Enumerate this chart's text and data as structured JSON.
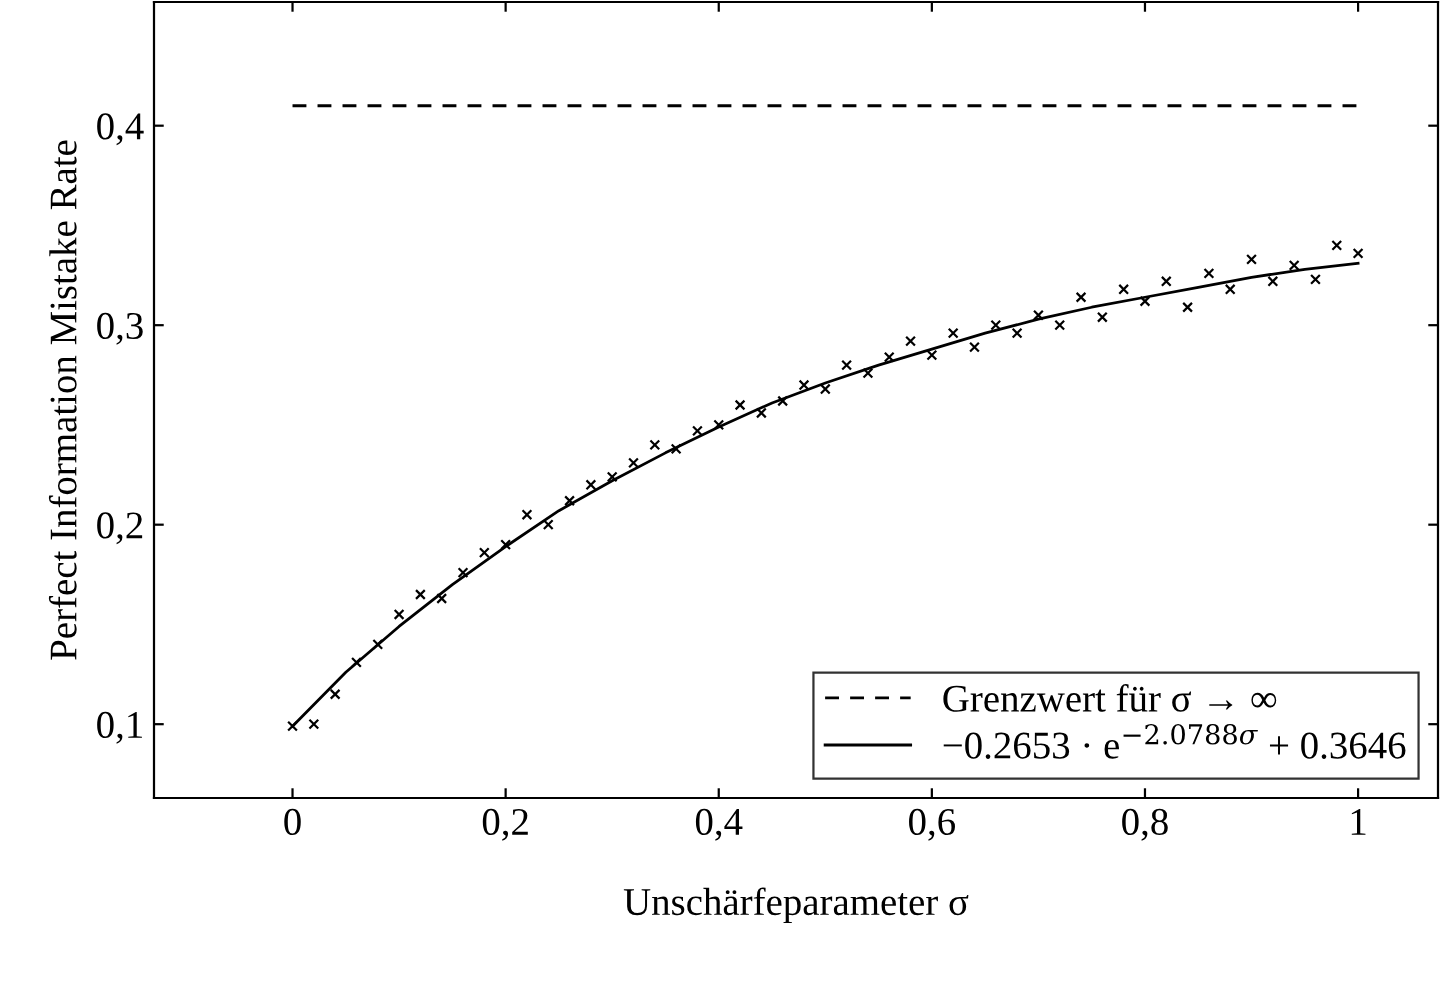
{
  "chart_data": {
    "type": "scatter",
    "xlabel": "Unschärfeparameter σ",
    "ylabel": "Perfect Information Mistake Rate",
    "xlim": [
      -0.13,
      1.075
    ],
    "ylim": [
      0.063,
      0.462
    ],
    "xticks": [
      0,
      {
        "value": 0.2,
        "label": "0,2"
      },
      {
        "value": 0.4,
        "label": "0,4"
      },
      {
        "value": 0.6,
        "label": "0,6"
      },
      {
        "value": 0.8,
        "label": "0,8"
      },
      1
    ],
    "yticks": [
      {
        "value": 0.1,
        "label": "0,1"
      },
      {
        "value": 0.2,
        "label": "0,2"
      },
      {
        "value": 0.3,
        "label": "0,3"
      },
      {
        "value": 0.4,
        "label": "0,4"
      }
    ],
    "grid": false,
    "legend": "bottom right",
    "series": [
      {
        "marker": "cross",
        "color": "#000000",
        "x": [
          0,
          0.02,
          0.04,
          0.06,
          0.08,
          0.1,
          0.12,
          0.14,
          0.16,
          0.18,
          0.2,
          0.22,
          0.24,
          0.26,
          0.28,
          0.3,
          0.32,
          0.34,
          0.36,
          0.38,
          0.4,
          0.42,
          0.44,
          0.46,
          0.48,
          0.5,
          0.52,
          0.54,
          0.56,
          0.58,
          0.6,
          0.62,
          0.64,
          0.66,
          0.68,
          0.7,
          0.72,
          0.74,
          0.76,
          0.78,
          0.8,
          0.82,
          0.84,
          0.86,
          0.88,
          0.9,
          0.92,
          0.94,
          0.96,
          0.98,
          1.0
        ],
        "values": [
          0.099,
          0.1,
          0.115,
          0.131,
          0.14,
          0.155,
          0.165,
          0.163,
          0.176,
          0.186,
          0.19,
          0.205,
          0.2,
          0.212,
          0.22,
          0.224,
          0.231,
          0.24,
          0.238,
          0.247,
          0.25,
          0.26,
          0.256,
          0.262,
          0.27,
          0.268,
          0.28,
          0.276,
          0.284,
          0.292,
          0.285,
          0.296,
          0.289,
          0.3,
          0.296,
          0.305,
          0.3,
          0.314,
          0.304,
          0.318,
          0.312,
          0.322,
          0.309,
          0.326,
          0.318,
          0.333,
          0.322,
          0.33,
          0.323,
          0.34,
          0.336
        ]
      },
      {
        "type": "line",
        "name": "Grenzwert für σ → ∞",
        "color": "#000000",
        "line_style": "dashed",
        "x": [
          0,
          1
        ],
        "values": [
          0.41,
          0.41
        ]
      },
      {
        "type": "line",
        "name": "−0.2653 · e$^{−2.0788σ}$ + 0.3646",
        "color": "#000000",
        "line_style": "solid",
        "x": [
          0,
          0.05,
          0.1,
          0.15,
          0.2,
          0.25,
          0.3,
          0.35,
          0.4,
          0.45,
          0.5,
          0.55,
          0.6,
          0.65,
          0.7,
          0.75,
          0.8,
          0.85,
          0.9,
          0.95,
          1.0
        ],
        "values": [
          0.099,
          0.126,
          0.149,
          0.17,
          0.189,
          0.207,
          0.222,
          0.236,
          0.249,
          0.261,
          0.271,
          0.28,
          0.288,
          0.296,
          0.303,
          0.309,
          0.314,
          0.319,
          0.324,
          0.328,
          0.331
        ]
      }
    ]
  }
}
